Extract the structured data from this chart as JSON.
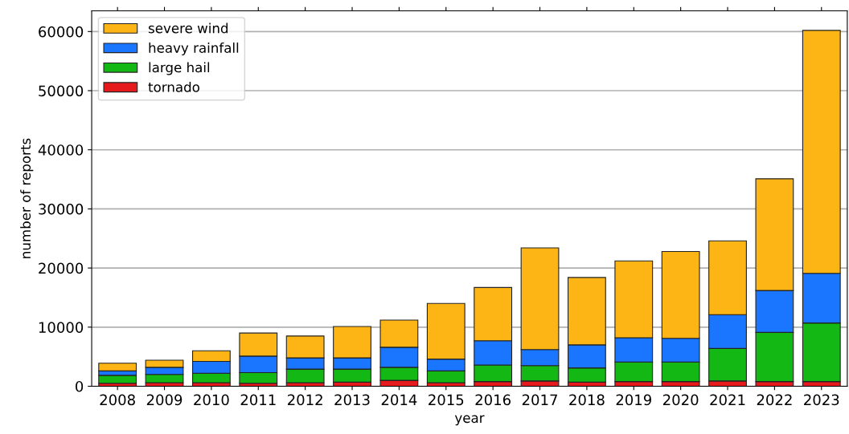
{
  "chart_data": {
    "type": "bar",
    "stacked": true,
    "xlabel": "year",
    "ylabel": "number of reports",
    "categories": [
      "2008",
      "2009",
      "2010",
      "2011",
      "2012",
      "2013",
      "2014",
      "2015",
      "2016",
      "2017",
      "2018",
      "2019",
      "2020",
      "2021",
      "2022",
      "2023"
    ],
    "series": [
      {
        "name": "tornado",
        "color": "#e41a1c",
        "values": [
          500,
          600,
          600,
          500,
          600,
          700,
          1000,
          600,
          800,
          900,
          700,
          800,
          800,
          900,
          800,
          800
        ]
      },
      {
        "name": "large hail",
        "color": "#14b814",
        "values": [
          1350,
          1400,
          1600,
          1800,
          2300,
          2200,
          2200,
          2000,
          2800,
          2600,
          2400,
          3300,
          3300,
          5500,
          8300,
          9900
        ]
      },
      {
        "name": "heavy rainfall",
        "color": "#1a75ff",
        "values": [
          750,
          1200,
          2000,
          2800,
          1900,
          1900,
          3400,
          2000,
          4100,
          2700,
          3900,
          4100,
          4000,
          5700,
          7100,
          8400
        ]
      },
      {
        "name": "severe wind",
        "color": "#fdb515",
        "values": [
          1300,
          1200,
          1800,
          3900,
          3700,
          5300,
          4600,
          9400,
          9000,
          17200,
          11400,
          13000,
          14700,
          12500,
          18900,
          41100
        ]
      }
    ],
    "ylim": [
      0,
      63500
    ],
    "yticks": [
      0,
      10000,
      20000,
      30000,
      40000,
      50000,
      60000
    ],
    "grid": "y",
    "legend": "top left"
  }
}
